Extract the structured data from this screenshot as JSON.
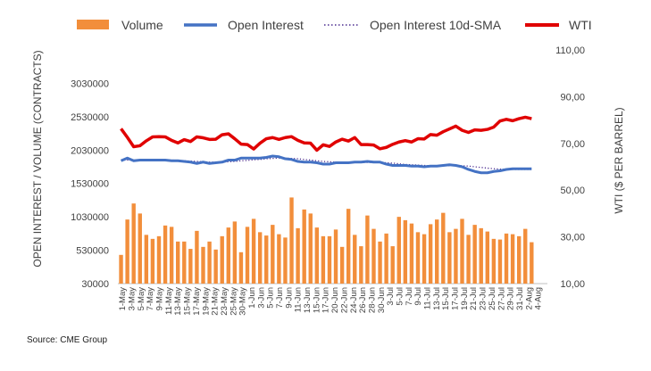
{
  "chart_data": {
    "type": "bar",
    "legend_position": "top",
    "grid": false,
    "ylabel": "OPEN INTEREST / VOLUME (CONTRACTS)",
    "y2label": "WTI ($ PER BARREL)",
    "source": "Source: CME Group",
    "ylim": [
      30000,
      3530000
    ],
    "y2lim": [
      10,
      110
    ],
    "yticks": [
      "30000",
      "530000",
      "1030000",
      "1530000",
      "2030000",
      "2530000",
      "3030000"
    ],
    "y2ticks": [
      "10,00",
      "30,00",
      "50,00",
      "70,00",
      "90,00",
      "110,00"
    ],
    "x_tick_labels": [
      "1-May",
      "3-May",
      "5-May",
      "7-May",
      "9-May",
      "11-May",
      "13-May",
      "15-May",
      "17-May",
      "19-May",
      "21-May",
      "23-May",
      "25-May",
      "27-May",
      "29-May",
      "31-May",
      "2-Jun",
      "4-Jun",
      "6-Jun",
      "8-Jun",
      "10-Jun",
      "12-Jun",
      "14-Jun",
      "16-Jun",
      "18-Jun",
      "20-Jun",
      "22-Jun",
      "24-Jun",
      "26-Jun",
      "28-Jun",
      "30-Jun",
      "2-Jul",
      "4-Jul",
      "6-Jul",
      "8-Jul",
      "10-Jul",
      "12-Jul",
      "14-Jul",
      "16-Jul",
      "18-Jul",
      "20-Jul",
      "22-Jul",
      "24-Jul",
      "26-Jul",
      "28-Jul",
      "30-Jul",
      "1-Aug",
      "3-Aug"
    ],
    "x_tick_labels_alt": [
      "1-May",
      "3-May",
      "5-May",
      "7-May",
      "9-May",
      "11-May",
      "13-May",
      "15-May",
      "17-May",
      "19-May",
      "21-May",
      "23-May",
      "25-May",
      "30-May",
      "1-Jun",
      "3-Jun",
      "5-Jun",
      "7-Jun",
      "9-Jun",
      "11-Jun",
      "13-Jun",
      "15-Jun",
      "17-Jun",
      "20-Jun",
      "22-Jun",
      "24-Jun",
      "26-Jun",
      "28-Jun",
      "30-Jun",
      "3-Jul",
      "5-Jul",
      "7-Jul",
      "9-Jul",
      "11-Jul",
      "13-Jul",
      "15-Jul",
      "17-Jul",
      "19-Jul",
      "21-Jul",
      "23-Jul",
      "25-Jul",
      "27-Jul",
      "29-Jul",
      "31-Jul",
      "2-Aug",
      "4-Aug"
    ],
    "x_axis_labels": [
      "1-May",
      "3-May",
      "5-May",
      "7-May",
      "9-May",
      "11-May",
      "13-May",
      "15-May",
      "17-May",
      "19-May",
      "21-May",
      "23-May",
      "25-May",
      "30-May",
      "1-Jun",
      "3-Jun",
      "5-Jun",
      "7-Jun",
      "9-Jun",
      "11-Jun",
      "13-Jun",
      "15-Jun",
      "17-Jun",
      "20-Jun",
      "22-Jun",
      "24-Jun",
      "26-Jun",
      "28-Jun",
      "30-Jun",
      "3-Jul",
      "5-Jul",
      "7-Jul",
      "9-Jul",
      "11-Jul",
      "13-Jul",
      "15-Jul",
      "17-Jul",
      "19-Jul",
      "21-Jul",
      "23-Jul",
      "25-Jul",
      "27-Jul",
      "29-Jul",
      "31-Jul",
      "2-Aug",
      "4-Aug"
    ],
    "x_visible_labels": [
      "1-May",
      "3-May",
      "5-May",
      "7-May",
      "9-May",
      "11-May",
      "13-May",
      "15-May",
      "17-May",
      "19-May",
      "21-May",
      "23-May",
      "25-May",
      "30-May",
      "1-Jun",
      "3-Jun",
      "5-Jun",
      "7-Jun",
      "9-Jun",
      "11-Jun",
      "13-Jun",
      "15-Jun",
      "17-Jun",
      "20-Jun",
      "22-Jun",
      "24-Jun",
      "26-Jun",
      "28-Jun",
      "30-Jun",
      "3-Jul",
      "5-Jul",
      "7-Jul",
      "9-Jul",
      "11-Jul",
      "13-Jul",
      "15-Jul",
      "17-Jul",
      "19-Jul",
      "21-Jul",
      "23-Jul",
      "25-Jul",
      "27-Jul",
      "29-Jul",
      "31-Jul",
      "2-Aug",
      "4-Aug"
    ],
    "x_ticks_shown": [
      "1-May",
      "3-May",
      "5-May",
      "7-May",
      "9-May",
      "11-May",
      "13-May",
      "15-May",
      "17-May",
      "19-May",
      "21-May",
      "23-May",
      "25-May",
      "30-May",
      "1-Jun",
      "3-Jun",
      "5-Jun",
      "7-Jun",
      "9-Jun",
      "11-Jun",
      "13-Jun",
      "15-Jun",
      "17-Jun",
      "20-Jun",
      "22-Jun",
      "24-Jun",
      "26-Jun",
      "28-Jun",
      "30-Jun",
      "3-Jul",
      "5-Jul",
      "7-Jul",
      "9-Jul",
      "11-Jul",
      "13-Jul",
      "15-Jul",
      "17-Jul",
      "19-Jul",
      "21-Jul",
      "23-Jul",
      "25-Jul",
      "27-Jul",
      "29-Jul",
      "31-Jul",
      "2-Aug",
      "4-Aug"
    ],
    "colors": {
      "volume": "#f28e3b",
      "open_interest": "#4472c4",
      "sma": "#4b2c8f",
      "wti": "#e00000",
      "axis": "#bfbfbf",
      "text": "#404040"
    },
    "series": [
      {
        "name": "Volume",
        "type": "bar",
        "axis": "left",
        "values": [
          460000,
          990000,
          1230000,
          1080000,
          760000,
          700000,
          740000,
          900000,
          880000,
          660000,
          660000,
          550000,
          820000,
          580000,
          660000,
          540000,
          740000,
          870000,
          960000,
          500000,
          880000,
          1000000,
          800000,
          750000,
          910000,
          770000,
          720000,
          1320000,
          860000,
          1140000,
          1080000,
          870000,
          740000,
          740000,
          840000,
          580000,
          1150000,
          760000,
          590000,
          1050000,
          850000,
          660000,
          780000,
          590000,
          1030000,
          980000,
          930000,
          800000,
          770000,
          920000,
          990000,
          1090000,
          800000,
          850000,
          1000000,
          760000,
          910000,
          860000,
          810000,
          700000,
          690000,
          780000,
          770000,
          740000,
          850000,
          650000
        ]
      },
      {
        "name": "Open Interest",
        "type": "line",
        "axis": "left",
        "values": [
          1870000,
          1910000,
          1870000,
          1880000,
          1880000,
          1880000,
          1880000,
          1880000,
          1870000,
          1870000,
          1860000,
          1850000,
          1830000,
          1850000,
          1830000,
          1840000,
          1850000,
          1880000,
          1880000,
          1910000,
          1910000,
          1910000,
          1910000,
          1920000,
          1940000,
          1930000,
          1900000,
          1890000,
          1860000,
          1850000,
          1850000,
          1840000,
          1820000,
          1820000,
          1840000,
          1840000,
          1840000,
          1850000,
          1850000,
          1860000,
          1850000,
          1850000,
          1820000,
          1800000,
          1800000,
          1800000,
          1790000,
          1790000,
          1780000,
          1790000,
          1790000,
          1800000,
          1810000,
          1800000,
          1780000,
          1740000,
          1710000,
          1690000,
          1690000,
          1710000,
          1720000,
          1740000,
          1750000,
          1750000,
          1750000,
          1750000
        ]
      },
      {
        "name": "Open Interest 10d-SMA",
        "type": "line",
        "axis": "left",
        "style": "dotted",
        "values": [
          1880000,
          1880000,
          1880000,
          1880000,
          1880000,
          1880000,
          1880000,
          1880000,
          1880000,
          1875000,
          1870000,
          1865000,
          1860000,
          1855000,
          1850000,
          1850000,
          1850000,
          1855000,
          1860000,
          1870000,
          1875000,
          1885000,
          1890000,
          1900000,
          1905000,
          1910000,
          1910000,
          1905000,
          1900000,
          1890000,
          1880000,
          1870000,
          1860000,
          1855000,
          1850000,
          1845000,
          1845000,
          1845000,
          1845000,
          1845000,
          1845000,
          1845000,
          1840000,
          1835000,
          1825000,
          1815000,
          1810000,
          1805000,
          1800000,
          1795000,
          1795000,
          1795000,
          1795000,
          1795000,
          1795000,
          1790000,
          1780000,
          1770000,
          1760000,
          1750000,
          1745000,
          1740000,
          1740000,
          1740000,
          1740000,
          1740000
        ]
      },
      {
        "name": "WTI",
        "type": "line",
        "axis": "right",
        "values": [
          76.3,
          72.6,
          68.6,
          69.0,
          71.1,
          72.8,
          72.9,
          72.8,
          71.3,
          70.2,
          71.6,
          70.8,
          72.8,
          72.4,
          71.7,
          71.8,
          73.7,
          74.1,
          72.0,
          69.7,
          69.5,
          67.6,
          70.1,
          72.0,
          72.5,
          71.7,
          72.5,
          72.9,
          71.3,
          70.2,
          70.1,
          67.1,
          69.4,
          68.7,
          70.6,
          71.8,
          71.0,
          72.5,
          69.5,
          69.5,
          69.3,
          67.7,
          68.3,
          69.6,
          70.6,
          71.2,
          70.6,
          72.0,
          71.9,
          73.8,
          73.5,
          75.0,
          76.2,
          77.4,
          75.6,
          74.7,
          75.8,
          75.6,
          76.0,
          77.0,
          79.6,
          80.3,
          79.7,
          80.6,
          81.2,
          80.6
        ]
      }
    ],
    "legend": [
      "Volume",
      "Open Interest",
      "Open Interest 10d-SMA",
      "WTI"
    ]
  }
}
